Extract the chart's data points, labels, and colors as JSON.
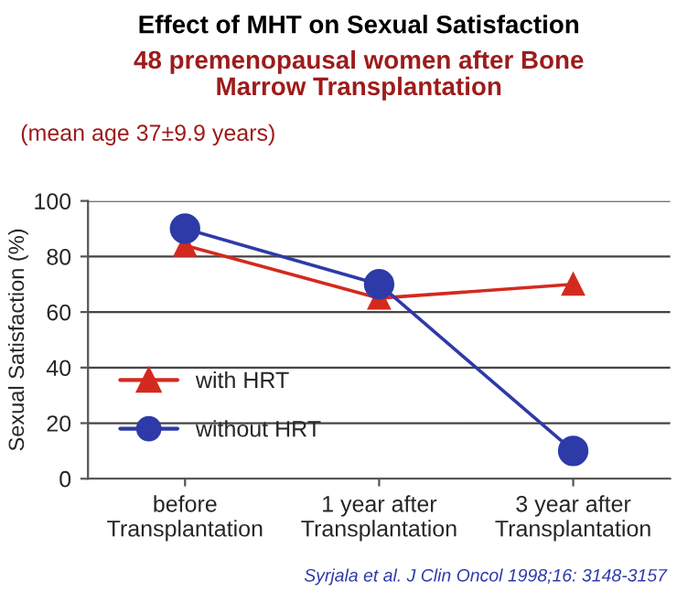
{
  "chart_data": {
    "type": "line",
    "title": "Effect of MHT on Sexual Satisfaction",
    "subtitle": "48 premenopausal women after Bone\nMarrow Transplantation",
    "ylabel": "Sexual Satisfaction (%)",
    "annotations": [
      "(mean age 37±9.9 years)",
      "Syrjala et al. J Clin Oncol 1998;16: 3148-3157"
    ],
    "categories": [
      "before\nTransplantation",
      "1 year after\nTransplantation",
      "3 year after\nTransplantation"
    ],
    "series": [
      {
        "name": "with HRT",
        "color": "#d42a1e",
        "marker": "triangle",
        "values": [
          84,
          65,
          70
        ]
      },
      {
        "name": "without HRT",
        "color": "#2e3aa8",
        "marker": "circle",
        "values": [
          90,
          70,
          10
        ]
      }
    ],
    "ylim": [
      0,
      100
    ],
    "yticks": [
      0,
      20,
      40,
      60,
      80,
      100
    ],
    "grid": "y",
    "legend": "bottom left",
    "line_style": "solid"
  }
}
